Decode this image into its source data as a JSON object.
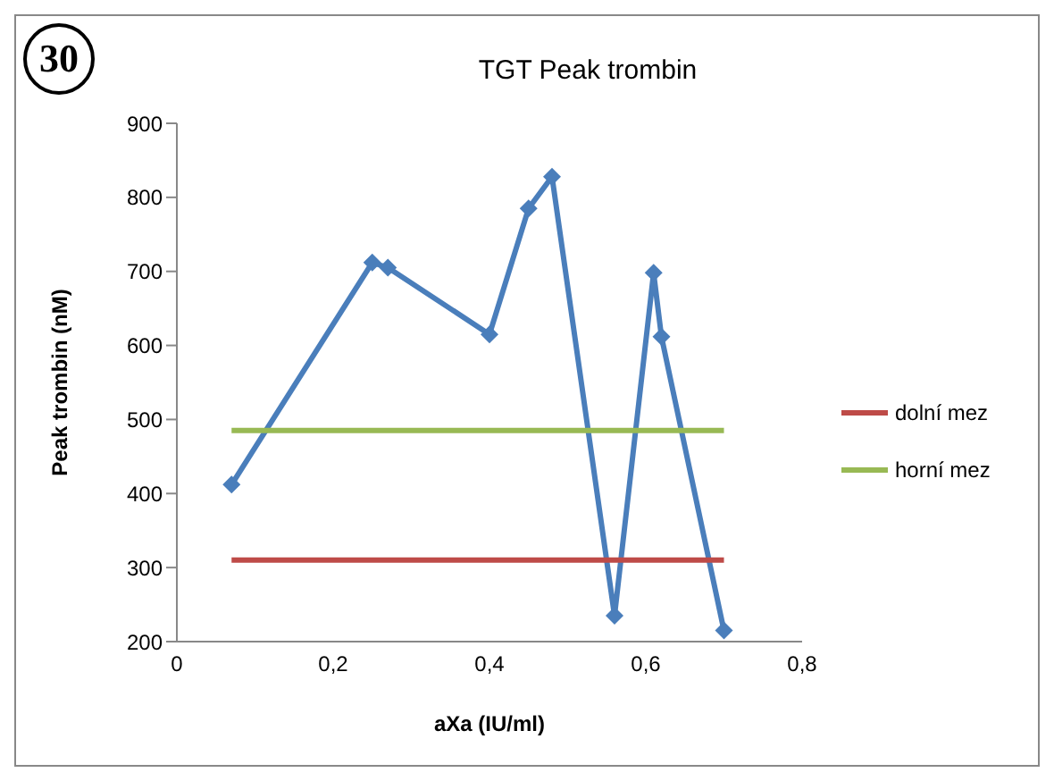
{
  "chart_data": {
    "type": "line",
    "title": "TGT Peak trombin",
    "xlabel": "aXa (IU/ml)",
    "ylabel": "Peak trombin (nM)",
    "annotations": [
      "30"
    ],
    "xlim": [
      0,
      0.8
    ],
    "xticks": [
      {
        "value": 0,
        "label": "0"
      },
      {
        "value": 0.2,
        "label": "0,2"
      },
      {
        "value": 0.4,
        "label": "0,4"
      },
      {
        "value": 0.6,
        "label": "0,6"
      },
      {
        "value": 0.8,
        "label": "0,8"
      }
    ],
    "ylim": [
      200,
      900
    ],
    "yticks": [
      200,
      300,
      400,
      500,
      600,
      700,
      800,
      900
    ],
    "grid": false,
    "legend": "right",
    "line_style": "solid",
    "series": [
      {
        "color": "#4a7ebb",
        "marker": "diamond",
        "x": [
          0.07,
          0.25,
          0.27,
          0.4,
          0.45,
          0.48,
          0.56,
          0.61,
          0.62,
          0.7
        ],
        "values": [
          412,
          712,
          705,
          615,
          785,
          828,
          235,
          698,
          612,
          215
        ]
      },
      {
        "name": "dolní mez",
        "color": "#be4b48",
        "marker": "none",
        "x": [
          0.07,
          0.7
        ],
        "values": [
          310,
          310
        ]
      },
      {
        "name": "horní mez",
        "color": "#98b954",
        "marker": "none",
        "x": [
          0.07,
          0.7
        ],
        "values": [
          485,
          485
        ]
      }
    ]
  }
}
